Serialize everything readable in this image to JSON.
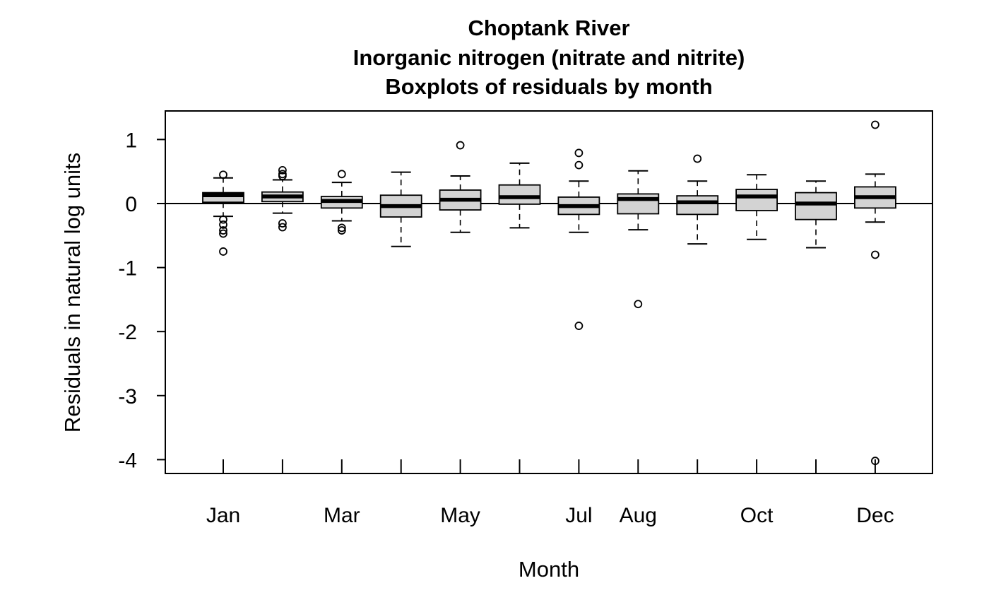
{
  "chart_data": {
    "type": "boxplot",
    "title_lines": [
      "Choptank River",
      "Inorganic nitrogen (nitrate and nitrite)",
      "Boxplots of residuals by month"
    ],
    "xlabel": "Month",
    "ylabel": "Residuals in natural log units",
    "ylim": [
      -4.2,
      1.45
    ],
    "yticks": [
      {
        "value": 1,
        "label": "1"
      },
      {
        "value": 0,
        "label": "0"
      },
      {
        "value": -1,
        "label": "-1"
      },
      {
        "value": -2,
        "label": "-2"
      },
      {
        "value": -3,
        "label": "-3"
      },
      {
        "value": -4,
        "label": "-4"
      }
    ],
    "x_tick_labels": [
      "Jan",
      "",
      "Mar",
      "",
      "May",
      "",
      "Jul",
      "Aug",
      "",
      "Oct",
      "",
      "Dec"
    ],
    "reference_line": 0,
    "box_fill": "#d3d3d3",
    "boxes": [
      {
        "month": 1,
        "whisker_low": -0.2,
        "q1": 0.02,
        "median": 0.13,
        "q3": 0.17,
        "whisker_high": 0.4,
        "outliers": [
          0.45,
          -0.25,
          -0.33,
          -0.42,
          -0.47,
          -0.75
        ]
      },
      {
        "month": 2,
        "whisker_low": -0.15,
        "q1": 0.03,
        "median": 0.11,
        "q3": 0.18,
        "whisker_high": 0.37,
        "outliers": [
          0.52,
          0.46,
          0.43,
          -0.31,
          -0.37
        ]
      },
      {
        "month": 3,
        "whisker_low": -0.27,
        "q1": -0.07,
        "median": 0.04,
        "q3": 0.11,
        "whisker_high": 0.33,
        "outliers": [
          0.46,
          -0.38,
          -0.42
        ]
      },
      {
        "month": 4,
        "whisker_low": -0.67,
        "q1": -0.21,
        "median": -0.04,
        "q3": 0.13,
        "whisker_high": 0.49,
        "outliers": []
      },
      {
        "month": 5,
        "whisker_low": -0.45,
        "q1": -0.1,
        "median": 0.06,
        "q3": 0.21,
        "whisker_high": 0.43,
        "outliers": [
          0.91
        ]
      },
      {
        "month": 6,
        "whisker_low": -0.38,
        "q1": -0.01,
        "median": 0.1,
        "q3": 0.29,
        "whisker_high": 0.63,
        "outliers": []
      },
      {
        "month": 7,
        "whisker_low": -0.45,
        "q1": -0.17,
        "median": -0.04,
        "q3": 0.1,
        "whisker_high": 0.35,
        "outliers": [
          0.79,
          0.6,
          -1.91
        ]
      },
      {
        "month": 8,
        "whisker_low": -0.41,
        "q1": -0.16,
        "median": 0.07,
        "q3": 0.15,
        "whisker_high": 0.51,
        "outliers": [
          -1.57
        ]
      },
      {
        "month": 9,
        "whisker_low": -0.63,
        "q1": -0.17,
        "median": 0.02,
        "q3": 0.12,
        "whisker_high": 0.35,
        "outliers": [
          0.7
        ]
      },
      {
        "month": 10,
        "whisker_low": -0.56,
        "q1": -0.11,
        "median": 0.11,
        "q3": 0.22,
        "whisker_high": 0.45,
        "outliers": []
      },
      {
        "month": 11,
        "whisker_low": -0.69,
        "q1": -0.25,
        "median": 0.0,
        "q3": 0.17,
        "whisker_high": 0.35,
        "outliers": []
      },
      {
        "month": 12,
        "whisker_low": -0.29,
        "q1": -0.07,
        "median": 0.1,
        "q3": 0.26,
        "whisker_high": 0.46,
        "outliers": [
          1.23,
          -0.8,
          -4.02
        ]
      }
    ]
  }
}
